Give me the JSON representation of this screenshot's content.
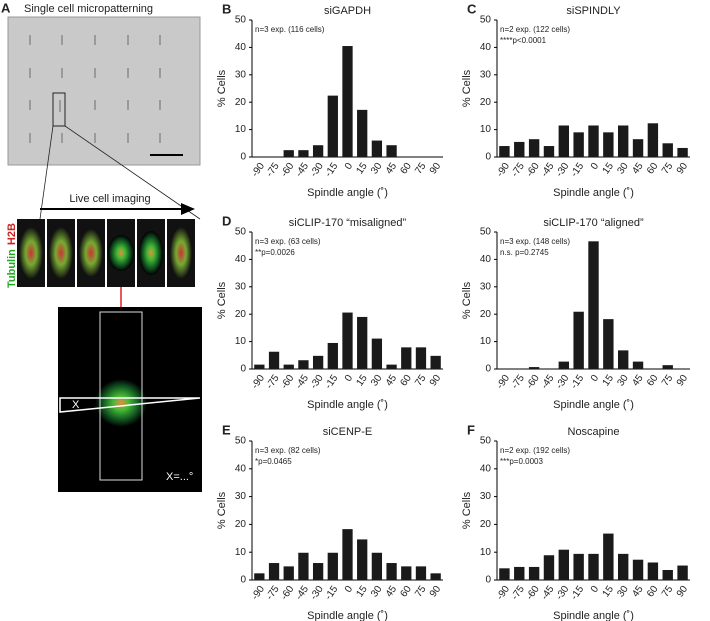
{
  "panel_a": {
    "letter": "A",
    "title": "Single cell micropatterning",
    "arrow_label": "Live cell imaging",
    "stain_1": "Tubulin",
    "stain_2": "H2B",
    "angle_symbol": "X",
    "angle_readout": "X=...°"
  },
  "chart_data": [
    {
      "type": "bar",
      "panel": "B",
      "title": "siGAPDH",
      "annotations": [
        "n=3 exp. (116 cells)"
      ],
      "x_label": "Spindle angle (˚)",
      "y_label": "% Cells",
      "categories": [
        "-90",
        "-75",
        "-60",
        "-45",
        "-30",
        "-15",
        "0",
        "15",
        "30",
        "45",
        "60",
        "75",
        "90"
      ],
      "values": [
        0,
        0,
        2.5,
        2.5,
        4.3,
        22.4,
        40.5,
        17.2,
        6,
        4.3,
        0,
        0,
        0
      ],
      "color": "#1a1a1a",
      "ylim": [
        0,
        50
      ],
      "yticks": [
        0,
        10,
        20,
        30,
        40,
        50
      ]
    },
    {
      "type": "bar",
      "panel": "C",
      "title": "siSPINDLY",
      "annotations": [
        "n=2 exp. (122 cells)",
        "****p<0.0001"
      ],
      "x_label": "Spindle angle (˚)",
      "y_label": "% Cells",
      "categories": [
        "-90",
        "-75",
        "-60",
        "-45",
        "-30",
        "-15",
        "0",
        "15",
        "30",
        "45",
        "60",
        "75",
        "90"
      ],
      "values": [
        4,
        5.5,
        6.5,
        4,
        11.5,
        9,
        11.5,
        9,
        11.5,
        6.5,
        12.3,
        5,
        3.3
      ],
      "color": "#1a1a1a",
      "ylim": [
        0,
        50
      ],
      "yticks": [
        0,
        10,
        20,
        30,
        40,
        50
      ]
    },
    {
      "type": "bar",
      "panel": "D",
      "title": "siCLIP-170 “misaligned”",
      "annotations": [
        "n=3 exp. (63 cells)",
        "**p=0.0026"
      ],
      "x_label": "Spindle angle (˚)",
      "y_label": "% Cells",
      "categories": [
        "-90",
        "-75",
        "-60",
        "-45",
        "-30",
        "-15",
        "0",
        "15",
        "30",
        "45",
        "60",
        "75",
        "90"
      ],
      "values": [
        1.6,
        6.3,
        1.6,
        3.2,
        4.8,
        9.5,
        20.6,
        19,
        11.1,
        1.6,
        7.9,
        7.9,
        4.8
      ],
      "color": "#1a1a1a",
      "ylim": [
        0,
        50
      ],
      "yticks": [
        0,
        10,
        20,
        30,
        40,
        50
      ]
    },
    {
      "type": "bar",
      "title": "siCLIP-170 “aligned”",
      "annotations": [
        "n=3 exp. (148 cells)",
        "n.s. p=0.2745"
      ],
      "x_label": "Spindle angle (˚)",
      "y_label": "% Cells",
      "categories": [
        "-90",
        "-75",
        "-60",
        "-45",
        "-30",
        "-15",
        "0",
        "15",
        "30",
        "45",
        "60",
        "75",
        "90"
      ],
      "values": [
        0,
        0,
        0.7,
        0,
        2.7,
        20.9,
        46.6,
        18.2,
        6.8,
        2.7,
        0,
        1.4,
        0
      ],
      "color": "#1a1a1a",
      "ylim": [
        0,
        50
      ],
      "yticks": [
        0,
        10,
        20,
        30,
        40,
        50
      ]
    },
    {
      "type": "bar",
      "panel": "E",
      "title": "siCENP-E",
      "annotations": [
        "n=3 exp. (82 cells)",
        "*p=0.0465"
      ],
      "x_label": "Spindle angle (˚)",
      "y_label": "% Cells",
      "categories": [
        "-90",
        "-75",
        "-60",
        "-45",
        "-30",
        "-15",
        "0",
        "15",
        "30",
        "45",
        "60",
        "75",
        "90"
      ],
      "values": [
        2.4,
        6.1,
        4.9,
        9.8,
        6.1,
        9.8,
        18.3,
        14.6,
        9.8,
        6.1,
        4.9,
        4.9,
        2.4
      ],
      "color": "#1a1a1a",
      "ylim": [
        0,
        50
      ],
      "yticks": [
        0,
        10,
        20,
        30,
        40,
        50
      ]
    },
    {
      "type": "bar",
      "panel": "F",
      "title": "Noscapine",
      "annotations": [
        "n=2 exp. (192 cells)",
        "***p=0.0003"
      ],
      "x_label": "Spindle angle (˚)",
      "y_label": "% Cells",
      "categories": [
        "-90",
        "-75",
        "-60",
        "-45",
        "-30",
        "-15",
        "0",
        "15",
        "30",
        "45",
        "60",
        "75",
        "90"
      ],
      "values": [
        4.2,
        4.7,
        4.7,
        8.9,
        10.9,
        9.4,
        9.4,
        16.7,
        9.4,
        7.3,
        6.3,
        3.6,
        5.2
      ],
      "color": "#1a1a1a",
      "ylim": [
        0,
        50
      ],
      "yticks": [
        0,
        10,
        20,
        30,
        40,
        50
      ]
    }
  ]
}
